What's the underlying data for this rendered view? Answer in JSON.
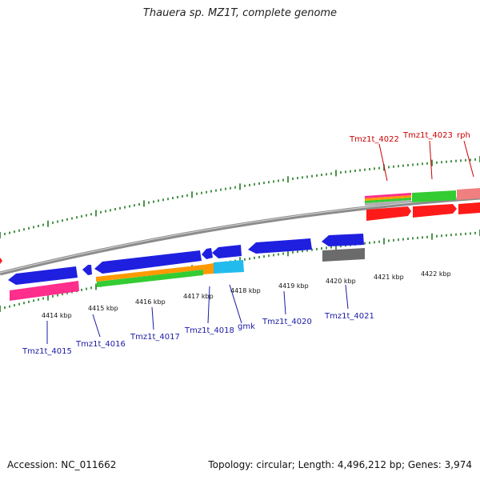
{
  "header": {
    "title": "Thauera sp. MZ1T, complete genome"
  },
  "footer": {
    "accession": "Accession: NC_011662",
    "summary": "Topology: circular; Length: 4,496,212 bp; Genes: 3,974"
  },
  "colors": {
    "backbone": "#8c8c8c",
    "tick": "#1f7a1f",
    "forward_label": "#cc0000",
    "reverse_label": "#1a1aa6",
    "cds_blue": "#1f1fe0",
    "cds_red": "#ff1a1a",
    "cds_grey": "#6b6b6b",
    "pink": "#ff2d8c",
    "green": "#33cc33",
    "orange": "#ff9900",
    "cyan": "#22bbee",
    "salmon": "#f08080"
  },
  "tick_labels": [
    "4414 kbp",
    "4415 kbp",
    "4416 kbp",
    "4417 kbp",
    "4418 kbp",
    "4419 kbp",
    "4420 kbp",
    "4421 kbp",
    "4422 kbp"
  ],
  "forward_genes": [
    "Tmz1t_4022",
    "Tmz1t_4023",
    "rph"
  ],
  "reverse_genes": [
    "Tmz1t_4015",
    "Tmz1t_4016",
    "Tmz1t_4017",
    "Tmz1t_4018",
    "gmk",
    "Tmz1t_4020",
    "Tmz1t_4021"
  ]
}
